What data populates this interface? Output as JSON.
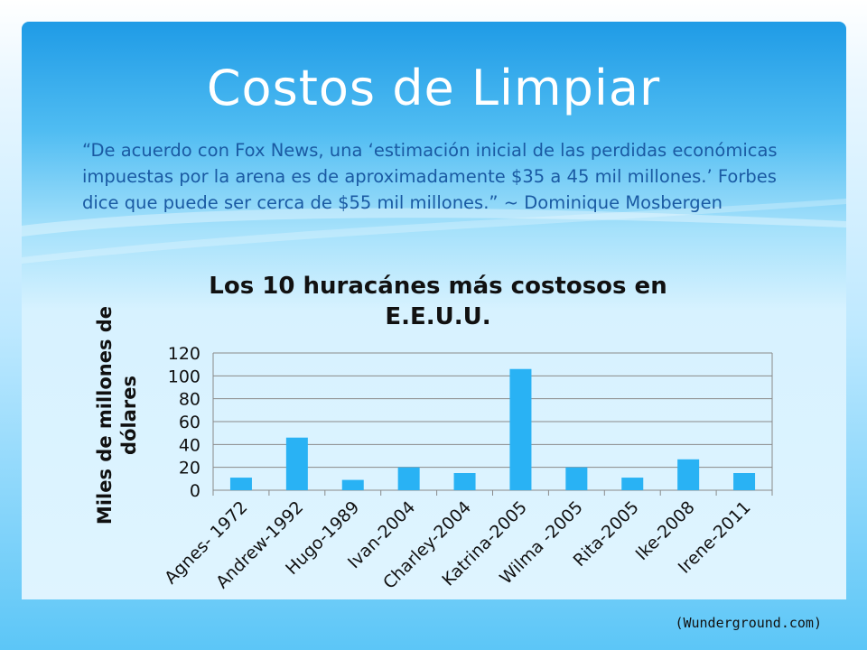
{
  "slide": {
    "title": "Costos de Limpiar",
    "quote": "“De acuerdo con Fox News, una ‘estimación inicial de las perdidas económicas impuestas por la arena es de aproximadamente $35 a 45 mil millones.’ Forbes dice que puede ser cerca de $55 mil millones.” ~ Dominique Mosbergen",
    "source": "(Wunderground.com)"
  },
  "colors": {
    "bar": "#29b2f4",
    "grid": "#8a8a8a"
  },
  "chart_data": {
    "type": "bar",
    "title": "Los 10 huracánes más costosos en E.E.U.U.",
    "xlabel": "",
    "ylabel": "Miles de millones de dólares",
    "categories": [
      "Agnes- 1972",
      "Andrew-1992",
      "Hugo-1989",
      "Ivan-2004",
      "Charley-2004",
      "Katrina-2005",
      "Wilma -2005",
      "Rita-2005",
      "Ike-2008",
      "Irene-2011"
    ],
    "values": [
      11,
      46,
      9,
      20,
      15,
      106,
      20,
      11,
      27,
      15
    ],
    "ylim": [
      0,
      120
    ],
    "yticks": [
      0,
      20,
      40,
      60,
      80,
      100,
      120
    ],
    "grid": true,
    "legend": "none"
  }
}
